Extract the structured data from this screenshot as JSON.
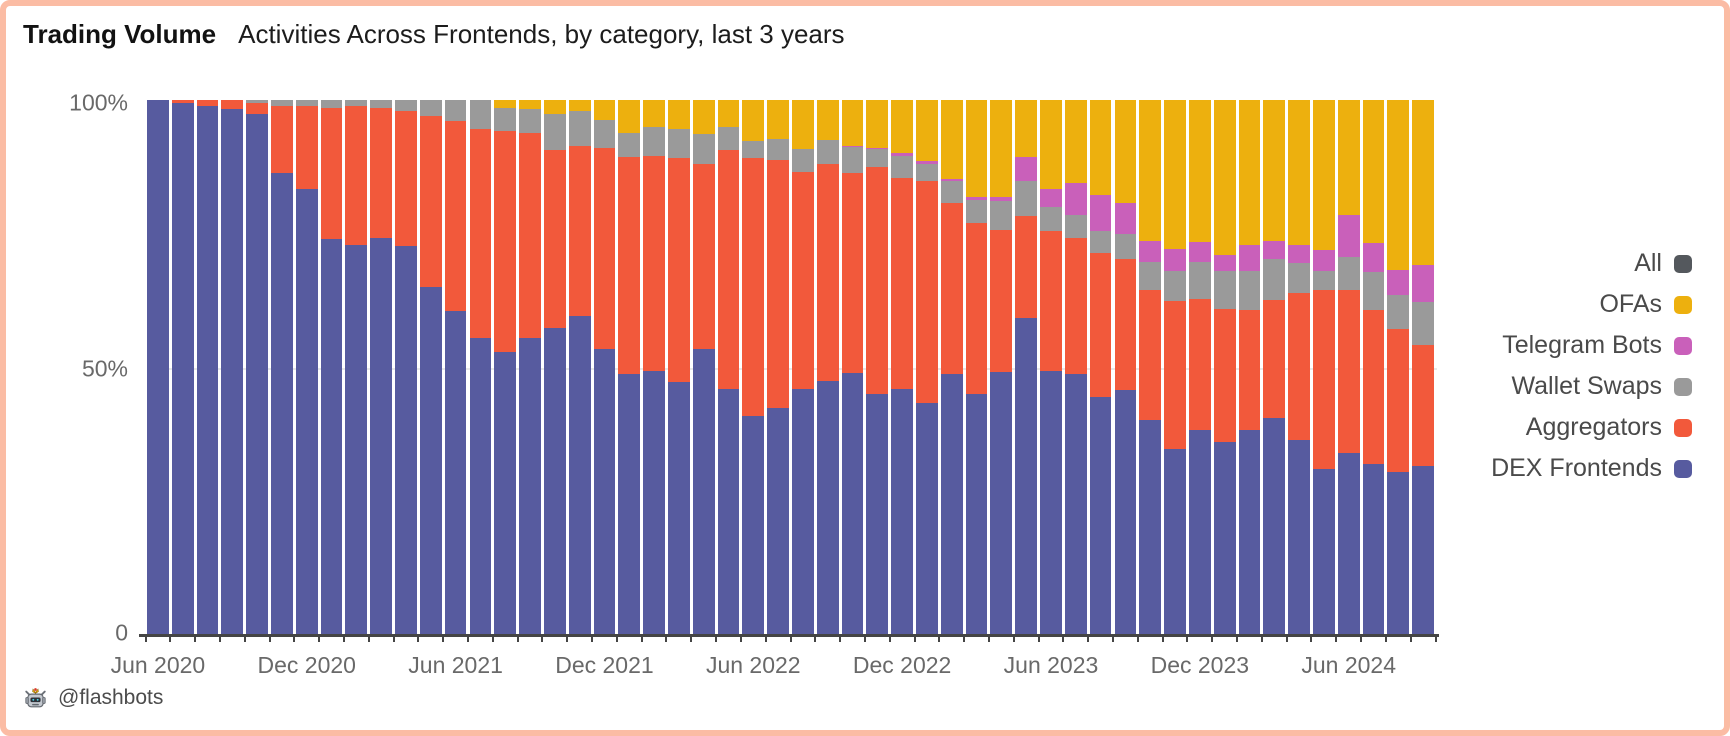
{
  "title": {
    "main": "Trading Volume",
    "subtitle": "Activities Across Frontends, by category, last 3 years"
  },
  "footer": {
    "icon": "flashbots-robot-icon",
    "handle": "@flashbots"
  },
  "y_axis": {
    "ticks": [
      {
        "label": "100%",
        "value": 100
      },
      {
        "label": "50%",
        "value": 50
      },
      {
        "label": "0",
        "value": 0
      }
    ]
  },
  "legend": [
    {
      "label": "All",
      "color": "#54585d"
    },
    {
      "label": "OFAs",
      "color": "#edb00e"
    },
    {
      "label": "Telegram Bots",
      "color": "#c960ba"
    },
    {
      "label": "Wallet Swaps",
      "color": "#9a9a9a"
    },
    {
      "label": "Aggregators",
      "color": "#f2593b"
    },
    {
      "label": "DEX Frontends",
      "color": "#575b9f"
    }
  ],
  "chart_data": {
    "type": "bar",
    "stacked": true,
    "unit": "%",
    "ylim": [
      0,
      100
    ],
    "grid": "50% line only",
    "legend_position": "right",
    "x_tick_step": 6,
    "categories": [
      "Jun 2020",
      "Jul 2020",
      "Aug 2020",
      "Sep 2020",
      "Oct 2020",
      "Nov 2020",
      "Dec 2020",
      "Jan 2021",
      "Feb 2021",
      "Mar 2021",
      "Apr 2021",
      "May 2021",
      "Jun 2021",
      "Jul 2021",
      "Aug 2021",
      "Sep 2021",
      "Oct 2021",
      "Nov 2021",
      "Dec 2021",
      "Jan 2022",
      "Feb 2022",
      "Mar 2022",
      "Apr 2022",
      "May 2022",
      "Jun 2022",
      "Jul 2022",
      "Aug 2022",
      "Sep 2022",
      "Oct 2022",
      "Nov 2022",
      "Dec 2022",
      "Jan 2023",
      "Feb 2023",
      "Mar 2023",
      "Apr 2023",
      "May 2023",
      "Jun 2023",
      "Jul 2023",
      "Aug 2023",
      "Sep 2023",
      "Oct 2023",
      "Nov 2023",
      "Dec 2023",
      "Jan 2024",
      "Feb 2024",
      "Mar 2024",
      "Apr 2024",
      "May 2024",
      "Jun 2024",
      "Jul 2024",
      "Aug 2024",
      "Sep 2024"
    ],
    "series": [
      {
        "name": "DEX Frontends",
        "color": "#575b9f",
        "values": [
          100,
          99.5,
          98.8,
          98.3,
          97.3,
          86.4,
          83.3,
          74.0,
          72.9,
          74.3,
          72.8,
          65.0,
          60.5,
          55.6,
          52.9,
          55.6,
          57.3,
          59.7,
          53.5,
          48.8,
          49.4,
          47.3,
          53.5,
          46.0,
          41.0,
          42.5,
          46.0,
          47.4,
          48.9,
          45.1,
          46.0,
          43.3,
          48.8,
          45.1,
          49.1,
          59.2,
          49.3,
          48.8,
          44.5,
          45.8,
          40.2,
          34.8,
          38.3,
          36.0,
          38.4,
          40.5,
          36.4,
          31.0,
          34.1,
          32.0,
          30.4,
          31.5
        ]
      },
      {
        "name": "Aggregators",
        "color": "#f2593b",
        "values": [
          0,
          0.5,
          1.2,
          1.7,
          2.1,
          12.5,
          15.5,
          24.5,
          26.0,
          24.2,
          25.2,
          32.0,
          35.5,
          38.9,
          41.4,
          38.2,
          33.3,
          31.7,
          37.5,
          40.6,
          40.2,
          41.8,
          34.5,
          44.6,
          48.1,
          46.2,
          40.6,
          40.6,
          37.5,
          42.3,
          39.5,
          41.6,
          32.0,
          32.0,
          26.6,
          19.2,
          26.3,
          25.5,
          27.0,
          24.5,
          24.2,
          27.7,
          24.5,
          24.9,
          22.4,
          22.1,
          27.6,
          33.4,
          30.3,
          28.8,
          26.8,
          22.8
        ]
      },
      {
        "name": "Wallet Swaps",
        "color": "#9a9a9a",
        "values": [
          0,
          0,
          0,
          0,
          0.6,
          1.1,
          1.2,
          1.5,
          1.1,
          1.5,
          2.0,
          3.0,
          4.0,
          5.5,
          4.3,
          4.6,
          6.8,
          6.6,
          5.2,
          4.5,
          5.4,
          5.4,
          5.7,
          4.4,
          3.2,
          4.0,
          4.2,
          4.5,
          4.8,
          3.4,
          4.0,
          3.2,
          4.1,
          4.2,
          5.5,
          6.5,
          4.4,
          4.2,
          4.1,
          4.6,
          5.4,
          5.6,
          7.0,
          7.2,
          7.3,
          7.7,
          5.5,
          3.7,
          6.3,
          7.1,
          6.4,
          7.9
        ]
      },
      {
        "name": "Telegram Bots",
        "color": "#c960ba",
        "values": [
          0,
          0,
          0,
          0,
          0,
          0,
          0,
          0,
          0,
          0,
          0,
          0,
          0,
          0,
          0,
          0,
          0,
          0,
          0,
          0,
          0,
          0,
          0,
          0,
          0,
          0,
          0,
          0,
          0.3,
          0.3,
          0.6,
          0.5,
          0.4,
          0.5,
          0.7,
          4.5,
          3.3,
          5.9,
          6.7,
          5.8,
          3.9,
          4.0,
          3.6,
          3.0,
          4.8,
          3.4,
          3.4,
          3.9,
          7.8,
          5.3,
          4.6,
          7.0
        ]
      },
      {
        "name": "OFAs",
        "color": "#edb00e",
        "values": [
          0,
          0,
          0,
          0,
          0,
          0,
          0,
          0,
          0,
          0,
          0,
          0,
          0,
          0,
          1.4,
          1.6,
          2.6,
          2.0,
          3.8,
          6.1,
          5.0,
          5.5,
          6.3,
          5.0,
          7.7,
          7.3,
          9.2,
          7.5,
          8.5,
          8.9,
          9.9,
          11.4,
          14.7,
          18.2,
          18.1,
          10.6,
          16.7,
          15.6,
          17.7,
          19.3,
          26.3,
          27.9,
          26.6,
          28.9,
          27.1,
          26.3,
          27.1,
          28.0,
          21.5,
          26.8,
          31.8,
          30.8
        ]
      }
    ]
  }
}
